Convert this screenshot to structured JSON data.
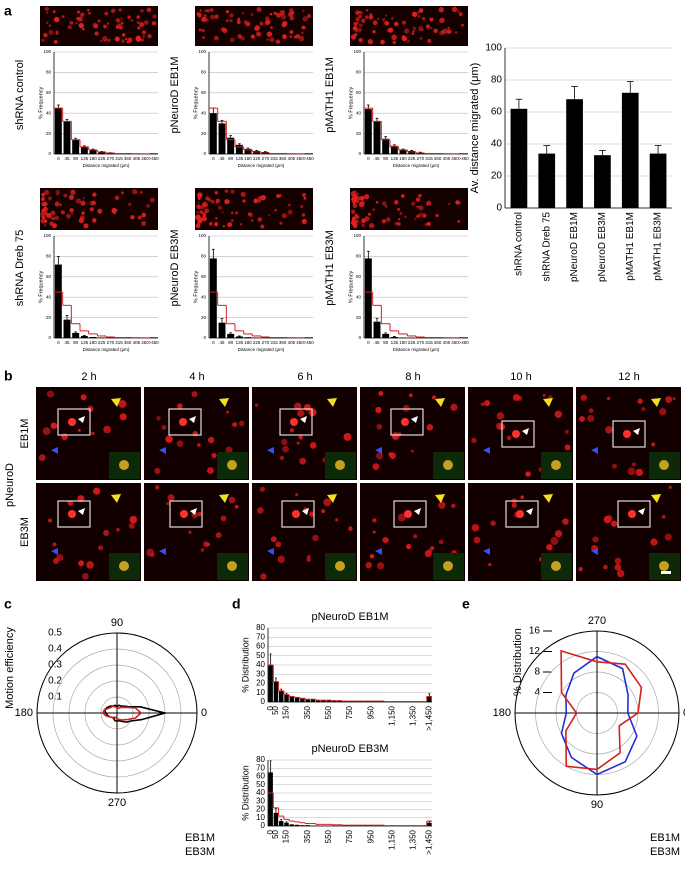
{
  "panel_labels": [
    "a",
    "b",
    "c",
    "d",
    "e"
  ],
  "panel_b": {
    "group": "pNeuroD",
    "rows": [
      "EB1M",
      "EB3M"
    ],
    "times": [
      "2 h",
      "4 h",
      "6 h",
      "8 h",
      "10 h",
      "12 h"
    ]
  },
  "chart_data": [
    {
      "type": "bar",
      "label": "shRNA control",
      "xlabel": "Distance migrated (μm)",
      "ylabel": "% Frequency",
      "categories": [
        "0",
        "45",
        "90",
        "135",
        "180",
        "225",
        "270",
        "315",
        "360",
        "405",
        "450",
        ">450"
      ],
      "values": [
        45,
        32,
        14,
        7,
        4,
        2,
        1,
        0.5,
        0.5,
        0.3,
        0.2,
        0.5
      ],
      "errors": [
        3,
        2,
        1.5,
        1,
        0.8,
        0.5,
        0.3,
        null,
        null,
        null,
        null,
        null
      ],
      "line_values": [
        45,
        32,
        14,
        7,
        4,
        2,
        1,
        0.5,
        0.5,
        0.3,
        0.2,
        0.5
      ],
      "color": "#000000",
      "line_color": "#d42020",
      "ylim": [
        0,
        100
      ],
      "yticks": [
        0,
        20,
        40,
        60,
        80,
        100
      ],
      "grid": true
    },
    {
      "type": "bar",
      "label": "pNeuroD EB1M",
      "xlabel": "Distance migrated (μm)",
      "ylabel": "% Frequency",
      "categories": [
        "0",
        "45",
        "90",
        "135",
        "180",
        "225",
        "270",
        "315",
        "360",
        "405",
        "450",
        ">450"
      ],
      "values": [
        40,
        30,
        16,
        9,
        5,
        3,
        2,
        1,
        1,
        0.5,
        0.3,
        0.5
      ],
      "errors": [
        5,
        3,
        2,
        1,
        0.8,
        0.5,
        0.3,
        null,
        null,
        null,
        null,
        null
      ],
      "line_values": [
        45,
        32,
        14,
        7,
        4,
        2,
        1,
        0.5,
        0.5,
        0.3,
        0.2,
        0.5
      ],
      "color": "#000000",
      "line_color": "#d42020",
      "ylim": [
        0,
        100
      ],
      "yticks": [
        0,
        20,
        40,
        60,
        80,
        100
      ],
      "grid": true
    },
    {
      "type": "bar",
      "label": "pMATH1 EB1M",
      "xlabel": "Distance migrated (μm)",
      "ylabel": "% Frequency",
      "categories": [
        "0",
        "45",
        "90",
        "135",
        "180",
        "225",
        "270",
        "315",
        "360",
        "405",
        "450",
        ">450"
      ],
      "values": [
        44,
        32,
        15,
        8,
        4,
        3,
        1.5,
        1,
        0.5,
        0.3,
        0.2,
        0.3
      ],
      "errors": [
        4,
        3,
        2,
        1,
        0.8,
        0.5,
        0.3,
        null,
        null,
        null,
        null,
        null
      ],
      "line_values": [
        45,
        32,
        14,
        7,
        4,
        2,
        1,
        0.5,
        0.5,
        0.3,
        0.2,
        0.5
      ],
      "color": "#000000",
      "line_color": "#d42020",
      "ylim": [
        0,
        100
      ],
      "yticks": [
        0,
        20,
        40,
        60,
        80,
        100
      ],
      "grid": true
    },
    {
      "type": "bar",
      "label": "shRNA Dreb 75",
      "xlabel": "Distance migrated (μm)",
      "ylabel": "% Frequency",
      "categories": [
        "0",
        "45",
        "90",
        "135",
        "180",
        "225",
        "270",
        "315",
        "360",
        "405",
        "450",
        ">450"
      ],
      "values": [
        72,
        18,
        5,
        2,
        1,
        0.5,
        0.3,
        0.2,
        0.1,
        0.1,
        0,
        0.1
      ],
      "errors": [
        8,
        4,
        1,
        0.5,
        null,
        null,
        null,
        null,
        null,
        null,
        null,
        null
      ],
      "line_values": [
        45,
        32,
        14,
        7,
        4,
        2,
        1,
        0.5,
        0.5,
        0.3,
        0.2,
        0.5
      ],
      "color": "#000000",
      "line_color": "#d42020",
      "ylim": [
        0,
        100
      ],
      "yticks": [
        0,
        20,
        40,
        60,
        80,
        100
      ],
      "grid": true
    },
    {
      "type": "bar",
      "label": "pNeuroD EB3M",
      "xlabel": "Distance migrated (μm)",
      "ylabel": "% Frequency",
      "categories": [
        "0",
        "45",
        "90",
        "135",
        "180",
        "225",
        "270",
        "315",
        "360",
        "405",
        "450",
        ">450"
      ],
      "values": [
        78,
        15,
        4,
        1.5,
        0.8,
        0.3,
        0.2,
        0.1,
        0.1,
        0,
        0,
        0
      ],
      "errors": [
        9,
        4,
        1,
        0.5,
        null,
        null,
        null,
        null,
        null,
        null,
        null,
        null
      ],
      "line_values": [
        45,
        32,
        14,
        7,
        4,
        2,
        1,
        0.5,
        0.5,
        0.3,
        0.2,
        0.5
      ],
      "color": "#000000",
      "line_color": "#d42020",
      "ylim": [
        0,
        100
      ],
      "yticks": [
        0,
        20,
        40,
        60,
        80,
        100
      ],
      "grid": true
    },
    {
      "type": "bar",
      "label": "pMATH1 EB3M",
      "xlabel": "Distance migrated (μm)",
      "ylabel": "% Frequency",
      "categories": [
        "0",
        "45",
        "90",
        "135",
        "180",
        "225",
        "270",
        "315",
        "360",
        "405",
        "450",
        ">450"
      ],
      "values": [
        78,
        16,
        4,
        1,
        0.5,
        0.3,
        0.1,
        0.1,
        0,
        0,
        0,
        0
      ],
      "errors": [
        7,
        3,
        1,
        0.5,
        null,
        null,
        null,
        null,
        null,
        null,
        null,
        null
      ],
      "line_values": [
        45,
        32,
        14,
        7,
        4,
        2,
        1,
        0.5,
        0.5,
        0.3,
        0.2,
        0.5
      ],
      "color": "#000000",
      "line_color": "#d42020",
      "ylim": [
        0,
        100
      ],
      "yticks": [
        0,
        20,
        40,
        60,
        80,
        100
      ],
      "grid": true
    },
    {
      "type": "bar",
      "ylabel": "Av. distance migrated (μm)",
      "categories": [
        "shRNA control",
        "shRNA Dreb 75",
        "pNeuroD EB1M",
        "pNeuroD EB3M",
        "pMATH1 EB1M",
        "pMATH1 EB3M"
      ],
      "values": [
        62,
        34,
        68,
        33,
        72,
        34
      ],
      "errors": [
        6,
        5,
        8,
        3,
        7,
        5
      ],
      "color": "#000000",
      "ylim": [
        0,
        100
      ],
      "yticks": [
        0,
        20,
        40,
        60,
        80,
        100
      ],
      "grid": true,
      "rotate_labels": true
    },
    {
      "type": "polar",
      "rlabel": "Motion efficiency",
      "direction": "counterclockwise",
      "theta": [
        0,
        15,
        30,
        45,
        60,
        75,
        90,
        105,
        120,
        135,
        150,
        165,
        180,
        195,
        210,
        225,
        240,
        255,
        270,
        285,
        300,
        315,
        330,
        345
      ],
      "rlim": [
        0,
        0.5
      ],
      "rticks": [
        0.1,
        0.2,
        0.3,
        0.4,
        0.5
      ],
      "angle_ticks": [
        0,
        90,
        180,
        270
      ],
      "legend": "bottom-right",
      "series": [
        {
          "name": "EB1M",
          "color": "#000000",
          "values": [
            0.3,
            0.15,
            0.08,
            0.06,
            0.05,
            0.05,
            0.04,
            0.05,
            0.05,
            0.06,
            0.07,
            0.08,
            0.07,
            0.06,
            0.05,
            0.04,
            0.04,
            0.05,
            0.05,
            0.05,
            0.06,
            0.08,
            0.1,
            0.16
          ]
        },
        {
          "name": "EB3M",
          "color": "#d42020",
          "values": [
            0.15,
            0.12,
            0.07,
            0.05,
            0.04,
            0.03,
            0.03,
            0.04,
            0.05,
            0.05,
            0.06,
            0.08,
            0.09,
            0.07,
            0.05,
            0.04,
            0.03,
            0.03,
            0.04,
            0.04,
            0.05,
            0.06,
            0.08,
            0.12
          ]
        }
      ]
    },
    {
      "type": "bar",
      "title": "pNeuroD EB1M",
      "ylabel": "% Distribution",
      "categories": [
        "0",
        "50",
        null,
        "150",
        null,
        null,
        null,
        "350",
        null,
        null,
        null,
        "550",
        null,
        null,
        null,
        "750",
        null,
        null,
        null,
        "950",
        null,
        null,
        null,
        "1,150",
        null,
        null,
        null,
        "1,350",
        null,
        null,
        ">1,450"
      ],
      "values": [
        40,
        22,
        12,
        8,
        6,
        5,
        4,
        3,
        3,
        2,
        2,
        2,
        1.5,
        1.5,
        1,
        1,
        1,
        1,
        1,
        1,
        1,
        1,
        0.5,
        0.5,
        0.5,
        0.5,
        0.5,
        0.5,
        0.5,
        0.5,
        6
      ],
      "errors": [
        12,
        4,
        2,
        1.5,
        null,
        null,
        null,
        null,
        null,
        null,
        null,
        null,
        null,
        null,
        null,
        null,
        null,
        null,
        null,
        null,
        null,
        null,
        null,
        null,
        null,
        null,
        null,
        null,
        null,
        null,
        3
      ],
      "line_values": [
        40,
        22,
        12,
        8,
        6,
        5,
        4,
        3,
        3,
        2,
        2,
        2,
        1.5,
        1.5,
        1,
        1,
        1,
        1,
        1,
        1,
        1,
        1,
        0.5,
        0.5,
        0.5,
        0.5,
        0.5,
        0.5,
        0.5,
        0.5,
        6
      ],
      "color": "#000000",
      "line_color": "#d42020",
      "ylim": [
        0,
        80
      ],
      "yticks": [
        0,
        10,
        20,
        30,
        40,
        50,
        60,
        70,
        80
      ],
      "grid": true,
      "rotate_labels": true
    },
    {
      "type": "bar",
      "title": "pNeuroD EB3M",
      "ylabel": "% Distribution",
      "categories": [
        "0",
        "50",
        null,
        "150",
        null,
        null,
        null,
        "350",
        null,
        null,
        null,
        "550",
        null,
        null,
        null,
        "750",
        null,
        null,
        null,
        "950",
        null,
        null,
        null,
        "1,150",
        null,
        null,
        null,
        "1,350",
        null,
        null,
        ">1,450"
      ],
      "values": [
        65,
        16,
        6,
        4,
        2,
        1.5,
        1,
        1,
        0.5,
        0.5,
        0.5,
        0.5,
        0.3,
        0.3,
        0.3,
        0.3,
        0.3,
        0.3,
        0.3,
        0.3,
        0.2,
        0.2,
        0.2,
        0.2,
        0.2,
        0.2,
        0.2,
        0.2,
        0.2,
        0.2,
        4
      ],
      "errors": [
        14,
        5,
        2,
        1,
        null,
        null,
        null,
        null,
        null,
        null,
        null,
        null,
        null,
        null,
        null,
        null,
        null,
        null,
        null,
        null,
        null,
        null,
        null,
        null,
        null,
        null,
        null,
        null,
        null,
        null,
        1.5
      ],
      "line_values": [
        40,
        22,
        12,
        8,
        6,
        5,
        4,
        3,
        3,
        2,
        2,
        2,
        1.5,
        1.5,
        1,
        1,
        1,
        1,
        1,
        1,
        1,
        1,
        0.5,
        0.5,
        0.5,
        0.5,
        0.5,
        0.5,
        0.5,
        0.5,
        6
      ],
      "color": "#000000",
      "line_color": "#d42020",
      "ylim": [
        0,
        80
      ],
      "yticks": [
        0,
        10,
        20,
        30,
        40,
        50,
        60,
        70,
        80
      ],
      "grid": true,
      "rotate_labels": true
    },
    {
      "type": "polar",
      "rlabel": "% Distribution",
      "direction": "clockwise",
      "theta": [
        0,
        30,
        60,
        90,
        120,
        150,
        180,
        210,
        240,
        270,
        300,
        330
      ],
      "rlim": [
        0,
        16
      ],
      "rticks": [
        4,
        8,
        12,
        16
      ],
      "angle_ticks": [
        0,
        90,
        180,
        270
      ],
      "legend": "bottom-right",
      "series": [
        {
          "name": "EB1M",
          "color": "#2030d0",
          "values": [
            6,
            9,
            11,
            12,
            10,
            8,
            6,
            7,
            9,
            11,
            10,
            7
          ]
        },
        {
          "name": "EB3M",
          "color": "#d42020",
          "values": [
            8,
            5,
            9,
            11,
            12,
            7,
            4,
            8,
            14,
            10,
            11,
            10
          ]
        }
      ]
    }
  ]
}
